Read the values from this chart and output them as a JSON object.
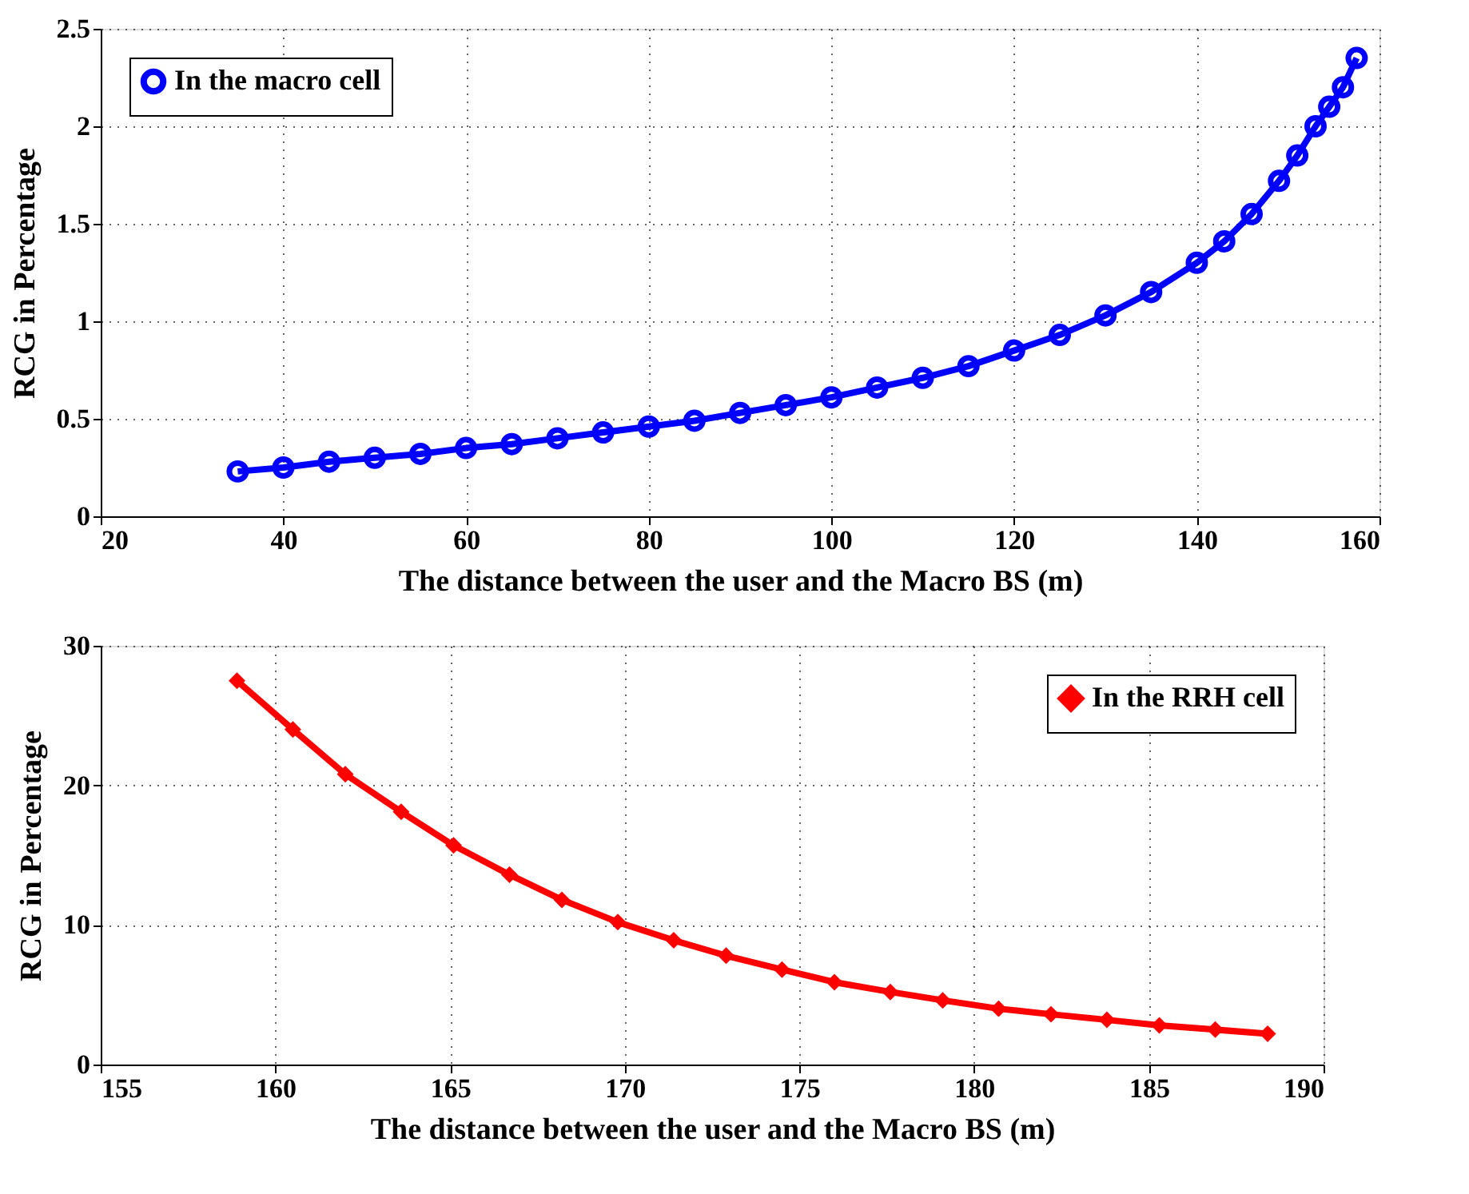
{
  "chart_data": [
    {
      "type": "line",
      "xlabel": "The distance between the user and the Macro BS (m)",
      "ylabel": "RCG in Percentage",
      "x": [
        35,
        40,
        45,
        50,
        55,
        60,
        65,
        70,
        75,
        80,
        85,
        90,
        95,
        100,
        105,
        110,
        115,
        120,
        125,
        130,
        135,
        140,
        143,
        146,
        149,
        151,
        153,
        154.5,
        156,
        157.5
      ],
      "series": [
        {
          "name": "In the macro cell",
          "color": "#0000ff",
          "marker": "circle",
          "line_style": "solid",
          "values": [
            0.23,
            0.25,
            0.28,
            0.3,
            0.32,
            0.35,
            0.37,
            0.4,
            0.43,
            0.46,
            0.49,
            0.53,
            0.57,
            0.61,
            0.66,
            0.71,
            0.77,
            0.85,
            0.93,
            1.03,
            1.15,
            1.3,
            1.41,
            1.55,
            1.72,
            1.85,
            2.0,
            2.1,
            2.2,
            2.35
          ]
        }
      ],
      "xlim": [
        20,
        160
      ],
      "xticks": [
        20,
        40,
        60,
        80,
        100,
        120,
        140,
        160
      ],
      "ylim": [
        0,
        2.5
      ],
      "yticks": [
        0,
        0.5,
        1,
        1.5,
        2,
        2.5
      ],
      "grid": true,
      "legend": "top left"
    },
    {
      "type": "line",
      "xlabel": "The distance between the user and the Macro BS (m)",
      "ylabel": "RCG in Percentage",
      "x": [
        158.9,
        160.5,
        162.0,
        163.6,
        165.1,
        166.7,
        168.2,
        169.8,
        171.4,
        172.9,
        174.5,
        176.0,
        177.6,
        179.1,
        180.7,
        182.2,
        183.8,
        185.3,
        186.9,
        188.4
      ],
      "series": [
        {
          "name": "In the RRH cell",
          "color": "#ff0000",
          "marker": "diamond",
          "line_style": "solid",
          "values": [
            27.5,
            24.0,
            20.8,
            18.1,
            15.7,
            13.6,
            11.8,
            10.2,
            8.9,
            7.8,
            6.8,
            5.9,
            5.2,
            4.6,
            4.0,
            3.6,
            3.2,
            2.8,
            2.5,
            2.2
          ]
        }
      ],
      "xlim": [
        155,
        190
      ],
      "xticks": [
        155,
        160,
        165,
        170,
        175,
        180,
        185,
        190
      ],
      "ylim": [
        0,
        30
      ],
      "yticks": [
        0,
        10,
        20,
        30
      ],
      "grid": true,
      "legend": "top right"
    }
  ]
}
